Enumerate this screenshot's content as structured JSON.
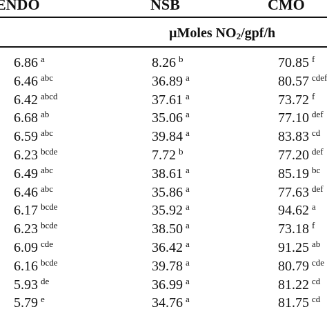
{
  "columns": {
    "endo": "ENDO",
    "nsb": "NSB",
    "cmo": "CMO"
  },
  "units": {
    "prefix": "µMoles NO",
    "sub": "2",
    "suffix": "/gpf/h"
  },
  "rows": [
    {
      "endo": "6.86",
      "endo_sup": "a",
      "nsb": "8.26",
      "nsb_sup": "b",
      "cmo": "70.85",
      "cmo_sup": "f"
    },
    {
      "endo": "6.46",
      "endo_sup": "abc",
      "nsb": "36.89",
      "nsb_sup": "a",
      "cmo": "80.57",
      "cmo_sup": "cdef"
    },
    {
      "endo": "6.42",
      "endo_sup": "abcd",
      "nsb": "37.61",
      "nsb_sup": "a",
      "cmo": "73.72",
      "cmo_sup": "f"
    },
    {
      "endo": "6.68",
      "endo_sup": "ab",
      "nsb": "35.06",
      "nsb_sup": "a",
      "cmo": "77.10",
      "cmo_sup": "def"
    },
    {
      "endo": "6.59",
      "endo_sup": "abc",
      "nsb": "39.84",
      "nsb_sup": "a",
      "cmo": "83.83",
      "cmo_sup": "cd"
    },
    {
      "endo": "6.23",
      "endo_sup": "bcde",
      "nsb": "7.72",
      "nsb_sup": "b",
      "cmo": "77.20",
      "cmo_sup": "def"
    },
    {
      "endo": "6.49",
      "endo_sup": "abc",
      "nsb": "38.61",
      "nsb_sup": "a",
      "cmo": "85.19",
      "cmo_sup": "bc"
    },
    {
      "endo": "6.46",
      "endo_sup": "abc",
      "nsb": "35.86",
      "nsb_sup": "a",
      "cmo": "77.63",
      "cmo_sup": "def"
    },
    {
      "endo": "6.17",
      "endo_sup": "bcde",
      "nsb": "35.92",
      "nsb_sup": "a",
      "cmo": "94.62",
      "cmo_sup": "a"
    },
    {
      "endo": "6.23",
      "endo_sup": "bcde",
      "nsb": "38.50",
      "nsb_sup": "a",
      "cmo": "73.18",
      "cmo_sup": "f"
    },
    {
      "endo": "6.09",
      "endo_sup": "cde",
      "nsb": "36.42",
      "nsb_sup": "a",
      "cmo": "91.25",
      "cmo_sup": "ab"
    },
    {
      "endo": "6.16",
      "endo_sup": "bcde",
      "nsb": "39.78",
      "nsb_sup": "a",
      "cmo": "80.79",
      "cmo_sup": "cde"
    },
    {
      "endo": "5.93",
      "endo_sup": "de",
      "nsb": "36.99",
      "nsb_sup": "a",
      "cmo": "81.22",
      "cmo_sup": "cd"
    },
    {
      "endo": "5.79",
      "endo_sup": "e",
      "nsb": "34.76",
      "nsb_sup": "a",
      "cmo": "81.75",
      "cmo_sup": "cd"
    }
  ]
}
